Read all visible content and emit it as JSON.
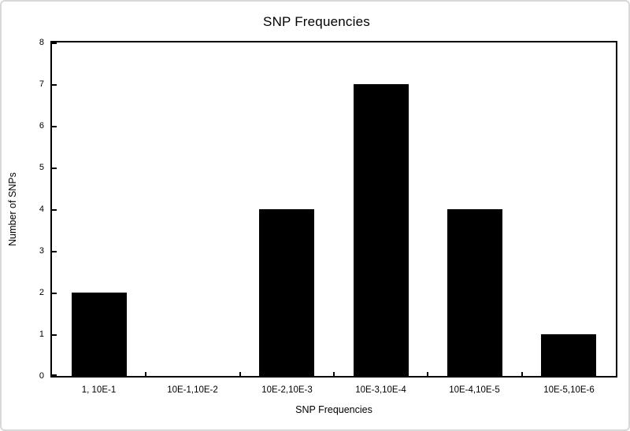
{
  "chart_data": {
    "type": "bar",
    "title": "SNP Frequencies",
    "categories": [
      "1, 10E-1",
      "10E-1,10E-2",
      "10E-2,10E-3",
      "10E-3,10E-4",
      "10E-4,10E-5",
      "10E-5,10E-6"
    ],
    "values": [
      2,
      0,
      4,
      7,
      4,
      1
    ],
    "xlabel": "SNP Frequencies",
    "ylabel": "Number of SNPs",
    "ylim": [
      0,
      8
    ],
    "ytick_step": 1,
    "yticks": [
      0,
      1,
      2,
      3,
      4,
      5,
      6,
      7,
      8
    ],
    "grid": false,
    "legend": false,
    "colors": {
      "bar": "#000000",
      "axis": "#000000",
      "text": "#000000",
      "background": "#ffffff",
      "frame_border": "#d8d8d8"
    }
  }
}
